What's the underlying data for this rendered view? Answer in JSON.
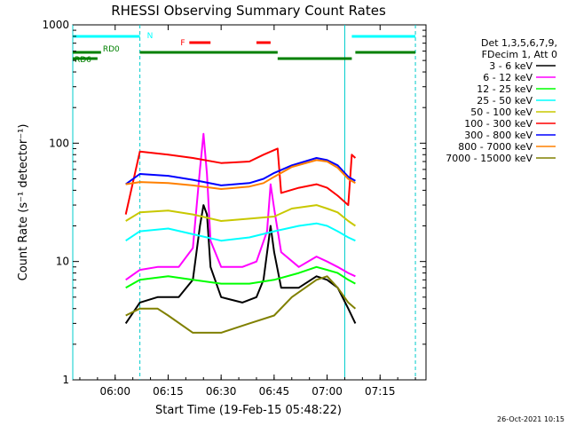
{
  "chart_data": {
    "type": "line",
    "title": "RHESSI Observing Summary Count Rates",
    "xlabel": "Start Time (19-Feb-15 05:48:22)",
    "ylabel": "Count Rate (s⁻¹ detector⁻¹)",
    "yscale": "log",
    "xlim_minutes_utc": [
      "05:48",
      "07:28"
    ],
    "ylim": [
      1,
      1000
    ],
    "x_ticks": [
      "06:00",
      "06:15",
      "06:30",
      "06:45",
      "07:00",
      "07:15"
    ],
    "y_ticks": [
      "1",
      "10",
      "100",
      "1000"
    ],
    "legend_header": [
      "Det 1,3,5,6,7,9,",
      "FDecim 1, Att 0"
    ],
    "legend_position": "right",
    "timestamp": "26-Oct-2021 10:15",
    "state_bars": [
      {
        "label": "N",
        "color": "#00ffff",
        "segments": [
          [
            "05:48",
            "06:07"
          ],
          [
            "07:07",
            "07:25"
          ]
        ]
      },
      {
        "label": "F",
        "color": "#ff0000",
        "segments": [
          [
            "06:21",
            "06:27"
          ],
          [
            "06:40",
            "06:44"
          ]
        ]
      },
      {
        "label": "RD0",
        "color": "#008000",
        "segments": [
          [
            "05:48",
            "05:56"
          ],
          [
            "06:07",
            "06:46"
          ],
          [
            "07:08",
            "07:25"
          ]
        ]
      },
      {
        "label": "RD6",
        "color": "#008000",
        "segments": [
          [
            "05:48",
            "05:55"
          ],
          [
            "06:46",
            "07:07"
          ]
        ]
      }
    ],
    "observation_windows": [
      [
        "06:07",
        "07:08"
      ]
    ],
    "vertical_markers": [
      {
        "time": "05:48",
        "style": "solid"
      },
      {
        "time": "06:07",
        "style": "dashed"
      },
      {
        "time": "07:05",
        "style": "solid"
      },
      {
        "time": "07:25",
        "style": "dashed"
      }
    ],
    "series": [
      {
        "name": "3 - 6 keV",
        "color": "#000000",
        "points": [
          [
            "06:03",
            3.0
          ],
          [
            "06:07",
            4.5
          ],
          [
            "06:12",
            5.0
          ],
          [
            "06:18",
            5.0
          ],
          [
            "06:22",
            7.0
          ],
          [
            "06:24",
            20
          ],
          [
            "06:25",
            30
          ],
          [
            "06:26",
            25
          ],
          [
            "06:27",
            9
          ],
          [
            "06:30",
            5.0
          ],
          [
            "06:36",
            4.5
          ],
          [
            "06:40",
            5.0
          ],
          [
            "06:42",
            7.0
          ],
          [
            "06:44",
            20
          ],
          [
            "06:45",
            12
          ],
          [
            "06:47",
            6.0
          ],
          [
            "06:52",
            6.0
          ],
          [
            "06:57",
            7.5
          ],
          [
            "07:00",
            7.0
          ],
          [
            "07:03",
            6.0
          ],
          [
            "07:06",
            4.0
          ],
          [
            "07:08",
            3.0
          ]
        ]
      },
      {
        "name": "6 - 12 keV",
        "color": "#ff00ff",
        "points": [
          [
            "06:03",
            7.0
          ],
          [
            "06:07",
            8.5
          ],
          [
            "06:12",
            9.0
          ],
          [
            "06:18",
            9.0
          ],
          [
            "06:22",
            13
          ],
          [
            "06:24",
            60
          ],
          [
            "06:25",
            120
          ],
          [
            "06:26",
            55
          ],
          [
            "06:27",
            15
          ],
          [
            "06:30",
            9.0
          ],
          [
            "06:36",
            9.0
          ],
          [
            "06:40",
            10
          ],
          [
            "06:43",
            18
          ],
          [
            "06:44",
            45
          ],
          [
            "06:45",
            28
          ],
          [
            "06:47",
            12
          ],
          [
            "06:52",
            9.0
          ],
          [
            "06:57",
            11
          ],
          [
            "07:00",
            10
          ],
          [
            "07:03",
            9.0
          ],
          [
            "07:06",
            8.0
          ],
          [
            "07:08",
            7.5
          ]
        ]
      },
      {
        "name": "12 - 25 keV",
        "color": "#00ff00",
        "points": [
          [
            "06:03",
            6.0
          ],
          [
            "06:07",
            7.0
          ],
          [
            "06:15",
            7.5
          ],
          [
            "06:22",
            7.0
          ],
          [
            "06:30",
            6.5
          ],
          [
            "06:38",
            6.5
          ],
          [
            "06:45",
            7.0
          ],
          [
            "06:52",
            8.0
          ],
          [
            "06:57",
            9.0
          ],
          [
            "07:00",
            8.5
          ],
          [
            "07:03",
            8.0
          ],
          [
            "07:06",
            7.0
          ],
          [
            "07:08",
            6.5
          ]
        ]
      },
      {
        "name": "25 - 50 keV",
        "color": "#00ffff",
        "points": [
          [
            "06:03",
            15
          ],
          [
            "06:07",
            18
          ],
          [
            "06:15",
            19
          ],
          [
            "06:22",
            17
          ],
          [
            "06:30",
            15
          ],
          [
            "06:38",
            16
          ],
          [
            "06:45",
            18
          ],
          [
            "06:52",
            20
          ],
          [
            "06:57",
            21
          ],
          [
            "07:00",
            20
          ],
          [
            "07:03",
            18
          ],
          [
            "07:06",
            16
          ],
          [
            "07:08",
            15
          ]
        ]
      },
      {
        "name": "50 - 100 keV",
        "color": "#c8c800",
        "points": [
          [
            "06:03",
            22
          ],
          [
            "06:07",
            26
          ],
          [
            "06:15",
            27
          ],
          [
            "06:22",
            25
          ],
          [
            "06:30",
            22
          ],
          [
            "06:38",
            23
          ],
          [
            "06:45",
            24
          ],
          [
            "06:50",
            28
          ],
          [
            "06:57",
            30
          ],
          [
            "07:00",
            28
          ],
          [
            "07:03",
            26
          ],
          [
            "07:06",
            22
          ],
          [
            "07:08",
            20
          ]
        ]
      },
      {
        "name": "100 - 300 keV",
        "color": "#ff0000",
        "points": [
          [
            "06:03",
            25
          ],
          [
            "06:07",
            85
          ],
          [
            "06:15",
            80
          ],
          [
            "06:22",
            75
          ],
          [
            "06:30",
            68
          ],
          [
            "06:38",
            70
          ],
          [
            "06:42",
            80
          ],
          [
            "06:46",
            90
          ],
          [
            "06:47",
            38
          ],
          [
            "06:52",
            42
          ],
          [
            "06:57",
            45
          ],
          [
            "07:00",
            42
          ],
          [
            "07:03",
            36
          ],
          [
            "07:06",
            30
          ],
          [
            "07:07",
            80
          ],
          [
            "07:08",
            75
          ]
        ]
      },
      {
        "name": "300 - 800 keV",
        "color": "#0000ff",
        "points": [
          [
            "06:03",
            45
          ],
          [
            "06:07",
            55
          ],
          [
            "06:15",
            53
          ],
          [
            "06:22",
            49
          ],
          [
            "06:30",
            44
          ],
          [
            "06:38",
            46
          ],
          [
            "06:42",
            50
          ],
          [
            "06:45",
            56
          ],
          [
            "06:50",
            65
          ],
          [
            "06:57",
            75
          ],
          [
            "07:00",
            72
          ],
          [
            "07:03",
            65
          ],
          [
            "07:06",
            52
          ],
          [
            "07:08",
            48
          ]
        ]
      },
      {
        "name": "800 - 7000 keV",
        "color": "#ff8000",
        "points": [
          [
            "06:03",
            45
          ],
          [
            "06:07",
            47
          ],
          [
            "06:15",
            46
          ],
          [
            "06:22",
            44
          ],
          [
            "06:30",
            41
          ],
          [
            "06:38",
            43
          ],
          [
            "06:42",
            46
          ],
          [
            "06:45",
            52
          ],
          [
            "06:50",
            63
          ],
          [
            "06:57",
            72
          ],
          [
            "07:00",
            70
          ],
          [
            "07:03",
            62
          ],
          [
            "07:06",
            50
          ],
          [
            "07:08",
            46
          ]
        ]
      },
      {
        "name": "7000 - 15000 keV",
        "color": "#808000",
        "points": [
          [
            "06:03",
            3.5
          ],
          [
            "06:07",
            4.0
          ],
          [
            "06:12",
            4.0
          ],
          [
            "06:15",
            3.5
          ],
          [
            "06:22",
            2.5
          ],
          [
            "06:30",
            2.5
          ],
          [
            "06:38",
            3.0
          ],
          [
            "06:45",
            3.5
          ],
          [
            "06:50",
            5.0
          ],
          [
            "06:57",
            7.0
          ],
          [
            "07:00",
            7.5
          ],
          [
            "07:03",
            6.0
          ],
          [
            "07:06",
            4.5
          ],
          [
            "07:08",
            4.0
          ]
        ]
      }
    ]
  }
}
